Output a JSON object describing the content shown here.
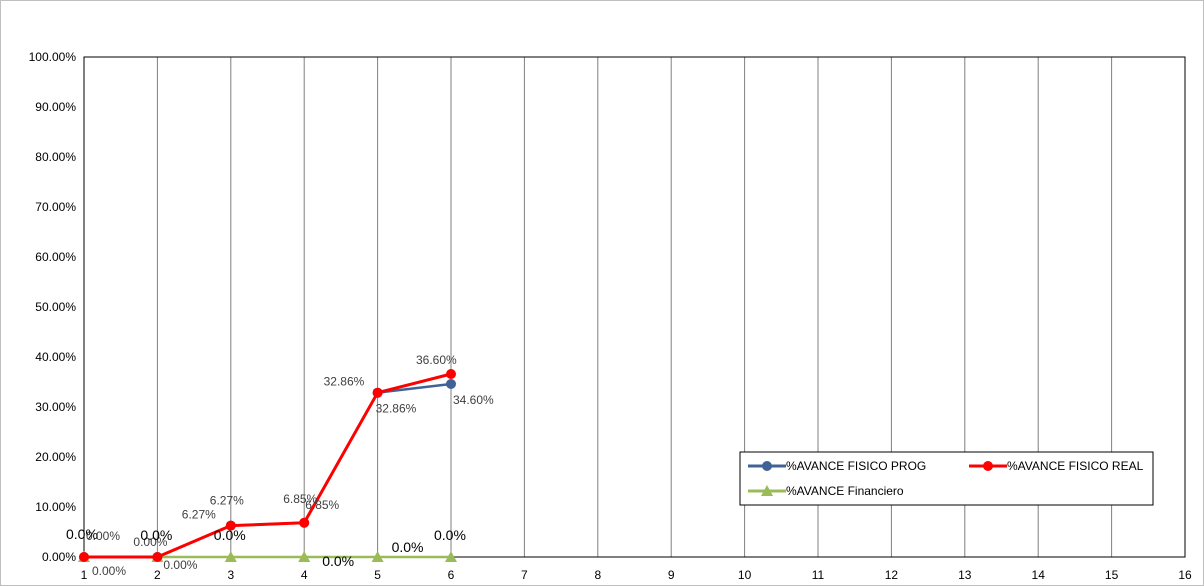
{
  "chart_data": {
    "type": "line",
    "title": "",
    "xlabel": "",
    "ylabel": "",
    "x": [
      1,
      2,
      3,
      4,
      5,
      6,
      7,
      8,
      9,
      10,
      11,
      12,
      13,
      14,
      15,
      16
    ],
    "ylim": [
      0,
      1
    ],
    "yticks": [
      "0.00%",
      "10.00%",
      "20.00%",
      "30.00%",
      "40.00%",
      "50.00%",
      "60.00%",
      "70.00%",
      "80.00%",
      "90.00%",
      "100.00%"
    ],
    "grid": "vertical",
    "legend_position": "bottom-right",
    "series": [
      {
        "name": "%AVANCE FISICO PROG",
        "color": "#3F6397",
        "marker": "circle",
        "x": [
          1,
          2,
          3,
          4,
          5,
          6
        ],
        "values": [
          0,
          0,
          0.0627,
          0.0685,
          0.3286,
          0.346
        ],
        "labels": [
          "0.00%",
          "0.00%",
          "6.27%",
          "6.85%",
          "32.86%",
          "34.60%"
        ]
      },
      {
        "name": "%AVANCE FISICO REAL",
        "color": "#FF0000",
        "marker": "circle",
        "x": [
          1,
          2,
          3,
          4,
          5,
          6
        ],
        "values": [
          0,
          0,
          0.0627,
          0.0685,
          0.3286,
          0.366
        ],
        "labels": [
          "0.00%",
          "0.00%",
          "6.27%",
          "6.85%",
          "32.86%",
          "36.60%"
        ]
      },
      {
        "name": "%AVANCE Financiero",
        "color": "#9BBB59",
        "marker": "triangle",
        "x": [
          1,
          2,
          3,
          4,
          5,
          6
        ],
        "values": [
          0,
          0,
          0,
          0,
          0,
          0
        ],
        "labels": [
          "0.0%",
          "0.0%",
          "0.0%",
          "0.0%",
          "0.0%",
          "0.0%"
        ]
      }
    ]
  }
}
